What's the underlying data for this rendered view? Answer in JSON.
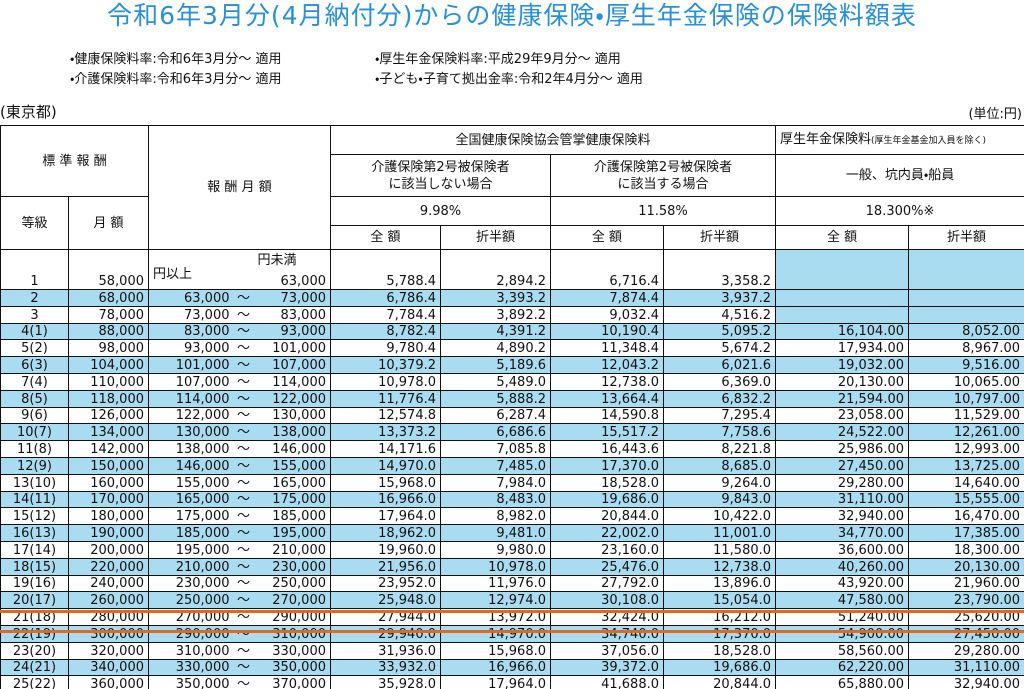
{
  "title": "令和6年3月分(4月納付分)からの健康保険・厚生年金保険の保険料額表",
  "notes": [
    "・健康保険料率:令和6年3月分～ 適用",
    "・厚生年金保険料率:平成29年9月分～ 適用",
    "・介護保険料率:令和6年3月分～ 適用",
    "・子ども・子育て拠出金率:令和2年4月分～ 適用"
  ],
  "region": "(東京都)",
  "unit": "(単位:円)",
  "table": {
    "header": {
      "standard_remuneration": "標 準 報 酬",
      "grade": "等級",
      "monthly": "月 額",
      "remuneration_range": "報 酬 月 額",
      "health": "全国健康保険協会管掌健康保険料",
      "pension": "厚生年金保険料",
      "pension_note": "(厚生年金基金加入員を除く)",
      "no_care": [
        "介護保険第2号被保険者",
        "に該当しない場合"
      ],
      "care": [
        "介護保険第2号被保険者",
        "に該当する場合"
      ],
      "pension_class": "一般、坑内員・船員",
      "rates": [
        "9.98%",
        "11.58%",
        "18.300%※"
      ],
      "sub": [
        "全 額",
        "折半額",
        "全 額",
        "折半額",
        "全 額",
        "折半額"
      ],
      "lower_unit": "円以上",
      "upper_unit": "円未満"
    },
    "rows": [
      [
        "1",
        "58,000",
        null,
        null,
        "63,000",
        "5,788.4",
        "2,894.2",
        "6,716.4",
        "3,358.2",
        null,
        null
      ],
      [
        "2",
        "68,000",
        "63,000",
        "～",
        "73,000",
        "6,786.4",
        "3,393.2",
        "7,874.4",
        "3,937.2",
        null,
        null
      ],
      [
        "3",
        "78,000",
        "73,000",
        "～",
        "83,000",
        "7,784.4",
        "3,892.2",
        "9,032.4",
        "4,516.2",
        null,
        null
      ],
      [
        "4(1)",
        "88,000",
        "83,000",
        "～",
        "93,000",
        "8,782.4",
        "4,391.2",
        "10,190.4",
        "5,095.2",
        "16,104.00",
        "8,052.00"
      ],
      [
        "5(2)",
        "98,000",
        "93,000",
        "～",
        "101,000",
        "9,780.4",
        "4,890.2",
        "11,348.4",
        "5,674.2",
        "17,934.00",
        "8,967.00"
      ],
      [
        "6(3)",
        "104,000",
        "101,000",
        "～",
        "107,000",
        "10,379.2",
        "5,189.6",
        "12,043.2",
        "6,021.6",
        "19,032.00",
        "9,516.00"
      ],
      [
        "7(4)",
        "110,000",
        "107,000",
        "～",
        "114,000",
        "10,978.0",
        "5,489.0",
        "12,738.0",
        "6,369.0",
        "20,130.00",
        "10,065.00"
      ],
      [
        "8(5)",
        "118,000",
        "114,000",
        "～",
        "122,000",
        "11,776.4",
        "5,888.2",
        "13,664.4",
        "6,832.2",
        "21,594.00",
        "10,797.00"
      ],
      [
        "9(6)",
        "126,000",
        "122,000",
        "～",
        "130,000",
        "12,574.8",
        "6,287.4",
        "14,590.8",
        "7,295.4",
        "23,058.00",
        "11,529.00"
      ],
      [
        "10(7)",
        "134,000",
        "130,000",
        "～",
        "138,000",
        "13,373.2",
        "6,686.6",
        "15,517.2",
        "7,758.6",
        "24,522.00",
        "12,261.00"
      ],
      [
        "11(8)",
        "142,000",
        "138,000",
        "～",
        "146,000",
        "14,171.6",
        "7,085.8",
        "16,443.6",
        "8,221.8",
        "25,986.00",
        "12,993.00"
      ],
      [
        "12(9)",
        "150,000",
        "146,000",
        "～",
        "155,000",
        "14,970.0",
        "7,485.0",
        "17,370.0",
        "8,685.0",
        "27,450.00",
        "13,725.00"
      ],
      [
        "13(10)",
        "160,000",
        "155,000",
        "～",
        "165,000",
        "15,968.0",
        "7,984.0",
        "18,528.0",
        "9,264.0",
        "29,280.00",
        "14,640.00"
      ],
      [
        "14(11)",
        "170,000",
        "165,000",
        "～",
        "175,000",
        "16,966.0",
        "8,483.0",
        "19,686.0",
        "9,843.0",
        "31,110.00",
        "15,555.00"
      ],
      [
        "15(12)",
        "180,000",
        "175,000",
        "～",
        "185,000",
        "17,964.0",
        "8,982.0",
        "20,844.0",
        "10,422.0",
        "32,940.00",
        "16,470.00"
      ],
      [
        "16(13)",
        "190,000",
        "185,000",
        "～",
        "195,000",
        "18,962.0",
        "9,481.0",
        "22,002.0",
        "11,001.0",
        "34,770.00",
        "17,385.00"
      ],
      [
        "17(14)",
        "200,000",
        "195,000",
        "～",
        "210,000",
        "19,960.0",
        "9,980.0",
        "23,160.0",
        "11,580.0",
        "36,600.00",
        "18,300.00"
      ],
      [
        "18(15)",
        "220,000",
        "210,000",
        "～",
        "230,000",
        "21,956.0",
        "10,978.0",
        "25,476.0",
        "12,738.0",
        "40,260.00",
        "20,130.00"
      ],
      [
        "19(16)",
        "240,000",
        "230,000",
        "～",
        "250,000",
        "23,952.0",
        "11,976.0",
        "27,792.0",
        "13,896.0",
        "43,920.00",
        "21,960.00"
      ],
      [
        "20(17)",
        "260,000",
        "250,000",
        "～",
        "270,000",
        "25,948.0",
        "12,974.0",
        "30,108.0",
        "15,054.0",
        "47,580.00",
        "23,790.00"
      ],
      [
        "21(18)",
        "280,000",
        "270,000",
        "～",
        "290,000",
        "27,944.0",
        "13,972.0",
        "32,424.0",
        "16,212.0",
        "51,240.00",
        "25,620.00"
      ],
      [
        "22(19)",
        "300,000",
        "290,000",
        "～",
        "310,000",
        "29,940.0",
        "14,970.0",
        "34,740.0",
        "17,370.0",
        "54,900.00",
        "27,450.00"
      ],
      [
        "23(20)",
        "320,000",
        "310,000",
        "～",
        "330,000",
        "31,936.0",
        "15,968.0",
        "37,056.0",
        "18,528.0",
        "58,560.00",
        "29,280.00"
      ],
      [
        "24(21)",
        "340,000",
        "330,000",
        "～",
        "350,000",
        "33,932.0",
        "16,966.0",
        "39,372.0",
        "19,686.0",
        "62,220.00",
        "31,110.00"
      ],
      [
        "25(22)",
        "360,000",
        "350,000",
        "～",
        "370,000",
        "35,928.0",
        "17,964.0",
        "41,688.0",
        "20,844.0",
        "65,880.00",
        "32,940.00"
      ]
    ]
  }
}
